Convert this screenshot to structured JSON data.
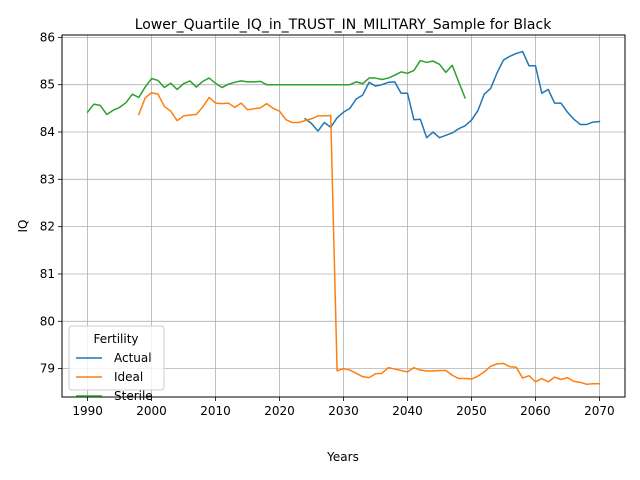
{
  "chart_data": {
    "type": "line",
    "title": "Lower_Quartile_IQ_in_TRUST_IN_MILITARY_Sample for Black",
    "xlabel": "Years",
    "ylabel": "IQ",
    "xlim": [
      1986,
      2074
    ],
    "ylim": [
      78.4,
      86.05
    ],
    "xticks": [
      1990,
      2000,
      2010,
      2020,
      2030,
      2040,
      2050,
      2060,
      2070
    ],
    "yticks": [
      79,
      80,
      81,
      82,
      83,
      84,
      85,
      86
    ],
    "grid": true,
    "legend": {
      "title": "Fertility",
      "position": "lower-left"
    },
    "series": [
      {
        "name": "Actual",
        "color": "#1f77b4",
        "x": [
          2024,
          2025,
          2026,
          2027,
          2028,
          2029,
          2030,
          2031,
          2032,
          2033,
          2034,
          2035,
          2036,
          2037,
          2038,
          2039,
          2040,
          2041,
          2042,
          2043,
          2044,
          2045,
          2046,
          2047,
          2048,
          2049,
          2050,
          2051,
          2052,
          2053,
          2054,
          2055,
          2056,
          2057,
          2058,
          2059,
          2060,
          2061,
          2062,
          2063,
          2064,
          2065,
          2066,
          2067,
          2068,
          2069,
          2070
        ],
        "y": [
          84.28,
          84.18,
          84.02,
          84.2,
          84.1,
          84.3,
          84.42,
          84.5,
          84.7,
          84.78,
          85.05,
          84.97,
          85.0,
          85.05,
          85.06,
          84.82,
          84.82,
          84.26,
          84.27,
          83.88,
          84.0,
          83.88,
          83.93,
          83.98,
          84.07,
          84.13,
          84.25,
          84.45,
          84.8,
          84.92,
          85.25,
          85.52,
          85.6,
          85.66,
          85.7,
          85.4,
          85.4,
          84.82,
          84.9,
          84.61,
          84.61,
          84.42,
          84.27,
          84.16,
          84.16,
          84.21,
          84.22
        ]
      },
      {
        "name": "Ideal",
        "color": "#ff7f0e",
        "x": [
          1998,
          1999,
          2000,
          2001,
          2002,
          2003,
          2004,
          2005,
          2006,
          2007,
          2008,
          2009,
          2010,
          2011,
          2012,
          2013,
          2014,
          2015,
          2016,
          2017,
          2018,
          2019,
          2020,
          2021,
          2022,
          2023,
          2024,
          2025,
          2026,
          2027,
          2028,
          2029,
          2030,
          2031,
          2032,
          2033,
          2034,
          2035,
          2036,
          2037,
          2038,
          2039,
          2040,
          2041,
          2042,
          2043,
          2044,
          2045,
          2046,
          2047,
          2048,
          2049,
          2050,
          2051,
          2052,
          2053,
          2054,
          2055,
          2056,
          2057,
          2058,
          2059,
          2060,
          2061,
          2062,
          2063,
          2064,
          2065,
          2066,
          2067,
          2068,
          2069,
          2070
        ],
        "y": [
          84.37,
          84.72,
          84.83,
          84.8,
          84.54,
          84.44,
          84.24,
          84.34,
          84.36,
          84.37,
          84.53,
          84.73,
          84.61,
          84.6,
          84.61,
          84.52,
          84.61,
          84.47,
          84.49,
          84.51,
          84.6,
          84.5,
          84.44,
          84.26,
          84.2,
          84.2,
          84.24,
          84.28,
          84.34,
          84.34,
          84.35,
          78.95,
          79.0,
          78.97,
          78.9,
          78.83,
          78.81,
          78.89,
          78.9,
          79.02,
          78.99,
          78.96,
          78.93,
          79.02,
          78.97,
          78.95,
          78.95,
          78.96,
          78.96,
          78.86,
          78.79,
          78.79,
          78.78,
          78.84,
          78.93,
          79.05,
          79.1,
          79.11,
          79.04,
          79.03,
          78.8,
          78.85,
          78.72,
          78.79,
          78.72,
          78.82,
          78.77,
          78.81,
          78.73,
          78.71,
          78.67,
          78.68,
          78.68
        ]
      },
      {
        "name": "Sterile",
        "color": "#2ca02c",
        "x": [
          1990,
          1991,
          1992,
          1993,
          1994,
          1995,
          1996,
          1997,
          1998,
          1999,
          2000,
          2001,
          2002,
          2003,
          2004,
          2005,
          2006,
          2007,
          2008,
          2009,
          2010,
          2011,
          2012,
          2013,
          2014,
          2015,
          2016,
          2017,
          2018,
          2019,
          2020,
          2021,
          2022,
          2023,
          2024,
          2025,
          2026,
          2027,
          2028,
          2029,
          2030,
          2031,
          2032,
          2033,
          2034,
          2035,
          2036,
          2037,
          2038,
          2039,
          2040,
          2041,
          2042,
          2043,
          2044,
          2045,
          2046,
          2047,
          2048,
          2049
        ],
        "y": [
          84.42,
          84.59,
          84.56,
          84.37,
          84.46,
          84.52,
          84.62,
          84.8,
          84.73,
          84.95,
          85.13,
          85.09,
          84.94,
          85.03,
          84.9,
          85.02,
          85.08,
          84.95,
          85.07,
          85.14,
          85.03,
          84.94,
          85.01,
          85.05,
          85.08,
          85.06,
          85.06,
          85.07,
          85.0,
          85.0,
          85.0,
          85.0,
          85.0,
          85.0,
          85.0,
          85.0,
          85.0,
          85.0,
          85.0,
          85.0,
          85.0,
          85.0,
          85.06,
          85.02,
          85.14,
          85.14,
          85.11,
          85.14,
          85.2,
          85.27,
          85.24,
          85.3,
          85.51,
          85.47,
          85.5,
          85.43,
          85.26,
          85.41,
          85.06,
          84.72
        ]
      }
    ]
  }
}
